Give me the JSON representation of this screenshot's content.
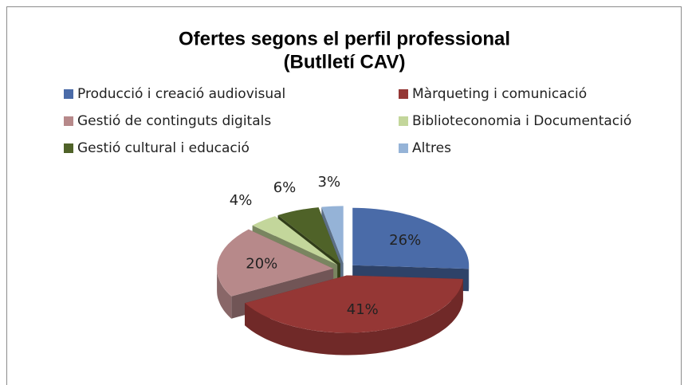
{
  "chart_data": {
    "type": "pie3d",
    "title": [
      "Ofertes segons el perfil professional",
      "(Butlletí CAV)"
    ],
    "categories": [
      "Producció i creació audiovisual",
      "Màrqueting i comunicació",
      "Gestió de continguts digitals",
      "Biblioteconomia i Documentació",
      "Gestió cultural i educació",
      "Altres"
    ],
    "values": [
      26,
      41,
      20,
      4,
      6,
      3
    ],
    "value_labels": [
      "26%",
      "41%",
      "20%",
      "4%",
      "6%",
      "3%"
    ],
    "colors": [
      "#4a6ba8",
      "#953735",
      "#b7898a",
      "#c3d69b",
      "#4f6228",
      "#95b3d7"
    ],
    "legend": "top"
  }
}
